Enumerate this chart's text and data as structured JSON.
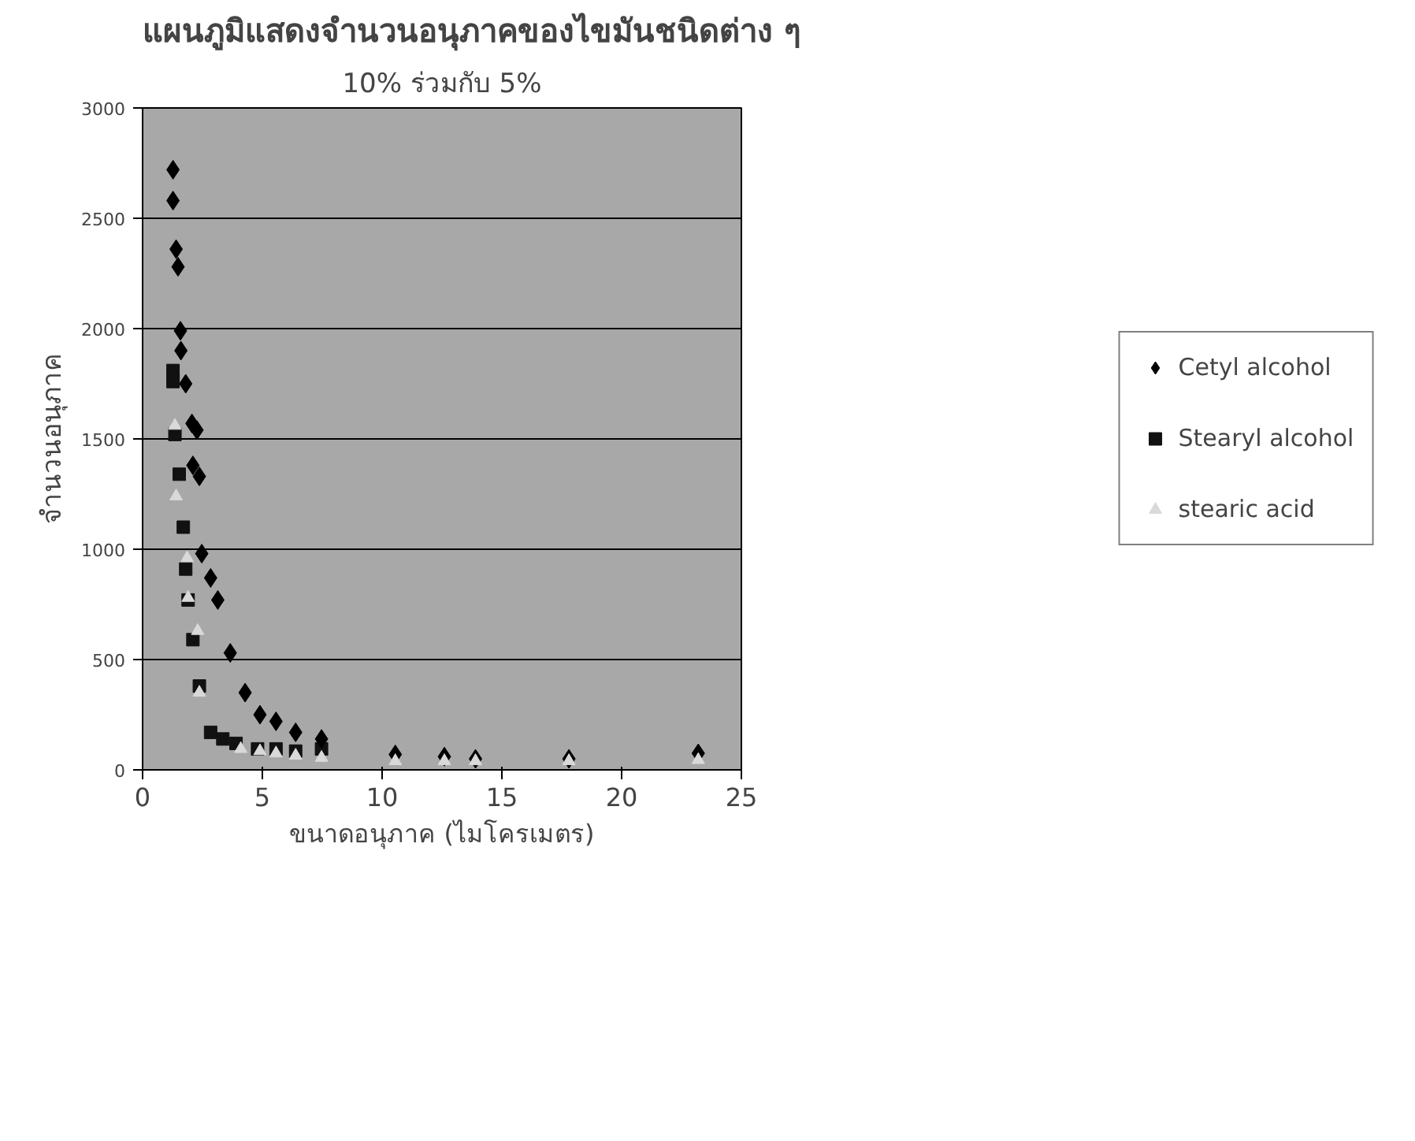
{
  "chart_data": {
    "type": "scatter",
    "title": "แผนภูมิแสดงจำนวนอนุภาคของไขมันชนิดต่าง ๆ",
    "subtitle": "10% ร่วมกับ 5%",
    "xlabel": "ขนาดอนุภาค (ไมโครเมตร)",
    "ylabel": "จำนวนอนุภาค",
    "xlim": [
      0,
      25
    ],
    "ylim": [
      0,
      3000
    ],
    "xticks": [
      0,
      5,
      10,
      15,
      20,
      25
    ],
    "yticks": [
      0,
      500,
      1000,
      1500,
      2000,
      2500,
      3000
    ],
    "grid": "y",
    "legend": "right",
    "series": [
      {
        "name": "Cetyl alcohol",
        "color": "#000000",
        "marker": "diamond",
        "x": [
          1.27,
          1.27,
          1.4,
          1.48,
          1.58,
          1.6,
          1.8,
          2.06,
          2.27,
          2.1,
          2.37,
          2.47,
          2.84,
          3.14,
          3.66,
          4.28,
          4.9,
          5.57,
          6.39,
          7.47,
          10.55,
          12.6,
          13.9,
          17.8,
          23.2
        ],
        "values": [
          2720,
          2580,
          2360,
          2280,
          1990,
          1900,
          1750,
          1570,
          1540,
          1380,
          1330,
          980,
          870,
          770,
          530,
          350,
          250,
          220,
          170,
          140,
          70,
          60,
          50,
          50,
          75
        ]
      },
      {
        "name": "Stearyl alcohol",
        "color": "#111111",
        "marker": "square",
        "x": [
          1.27,
          1.27,
          1.35,
          1.53,
          1.7,
          1.8,
          1.9,
          2.1,
          2.37,
          2.84,
          3.35,
          3.9,
          4.8,
          5.57,
          6.39,
          7.47
        ],
        "values": [
          1810,
          1760,
          1520,
          1340,
          1100,
          910,
          770,
          590,
          380,
          170,
          140,
          120,
          95,
          95,
          85,
          95
        ]
      },
      {
        "name": "stearic acid",
        "color": "#d9d9d9",
        "marker": "triangle",
        "x": [
          1.35,
          1.4,
          1.86,
          1.9,
          2.3,
          2.37,
          4.1,
          4.9,
          5.57,
          6.39,
          7.47,
          10.55,
          12.6,
          13.9,
          17.8,
          23.2
        ],
        "values": [
          1560,
          1240,
          960,
          780,
          630,
          350,
          95,
          85,
          75,
          65,
          55,
          40,
          40,
          40,
          40,
          45
        ]
      }
    ]
  }
}
